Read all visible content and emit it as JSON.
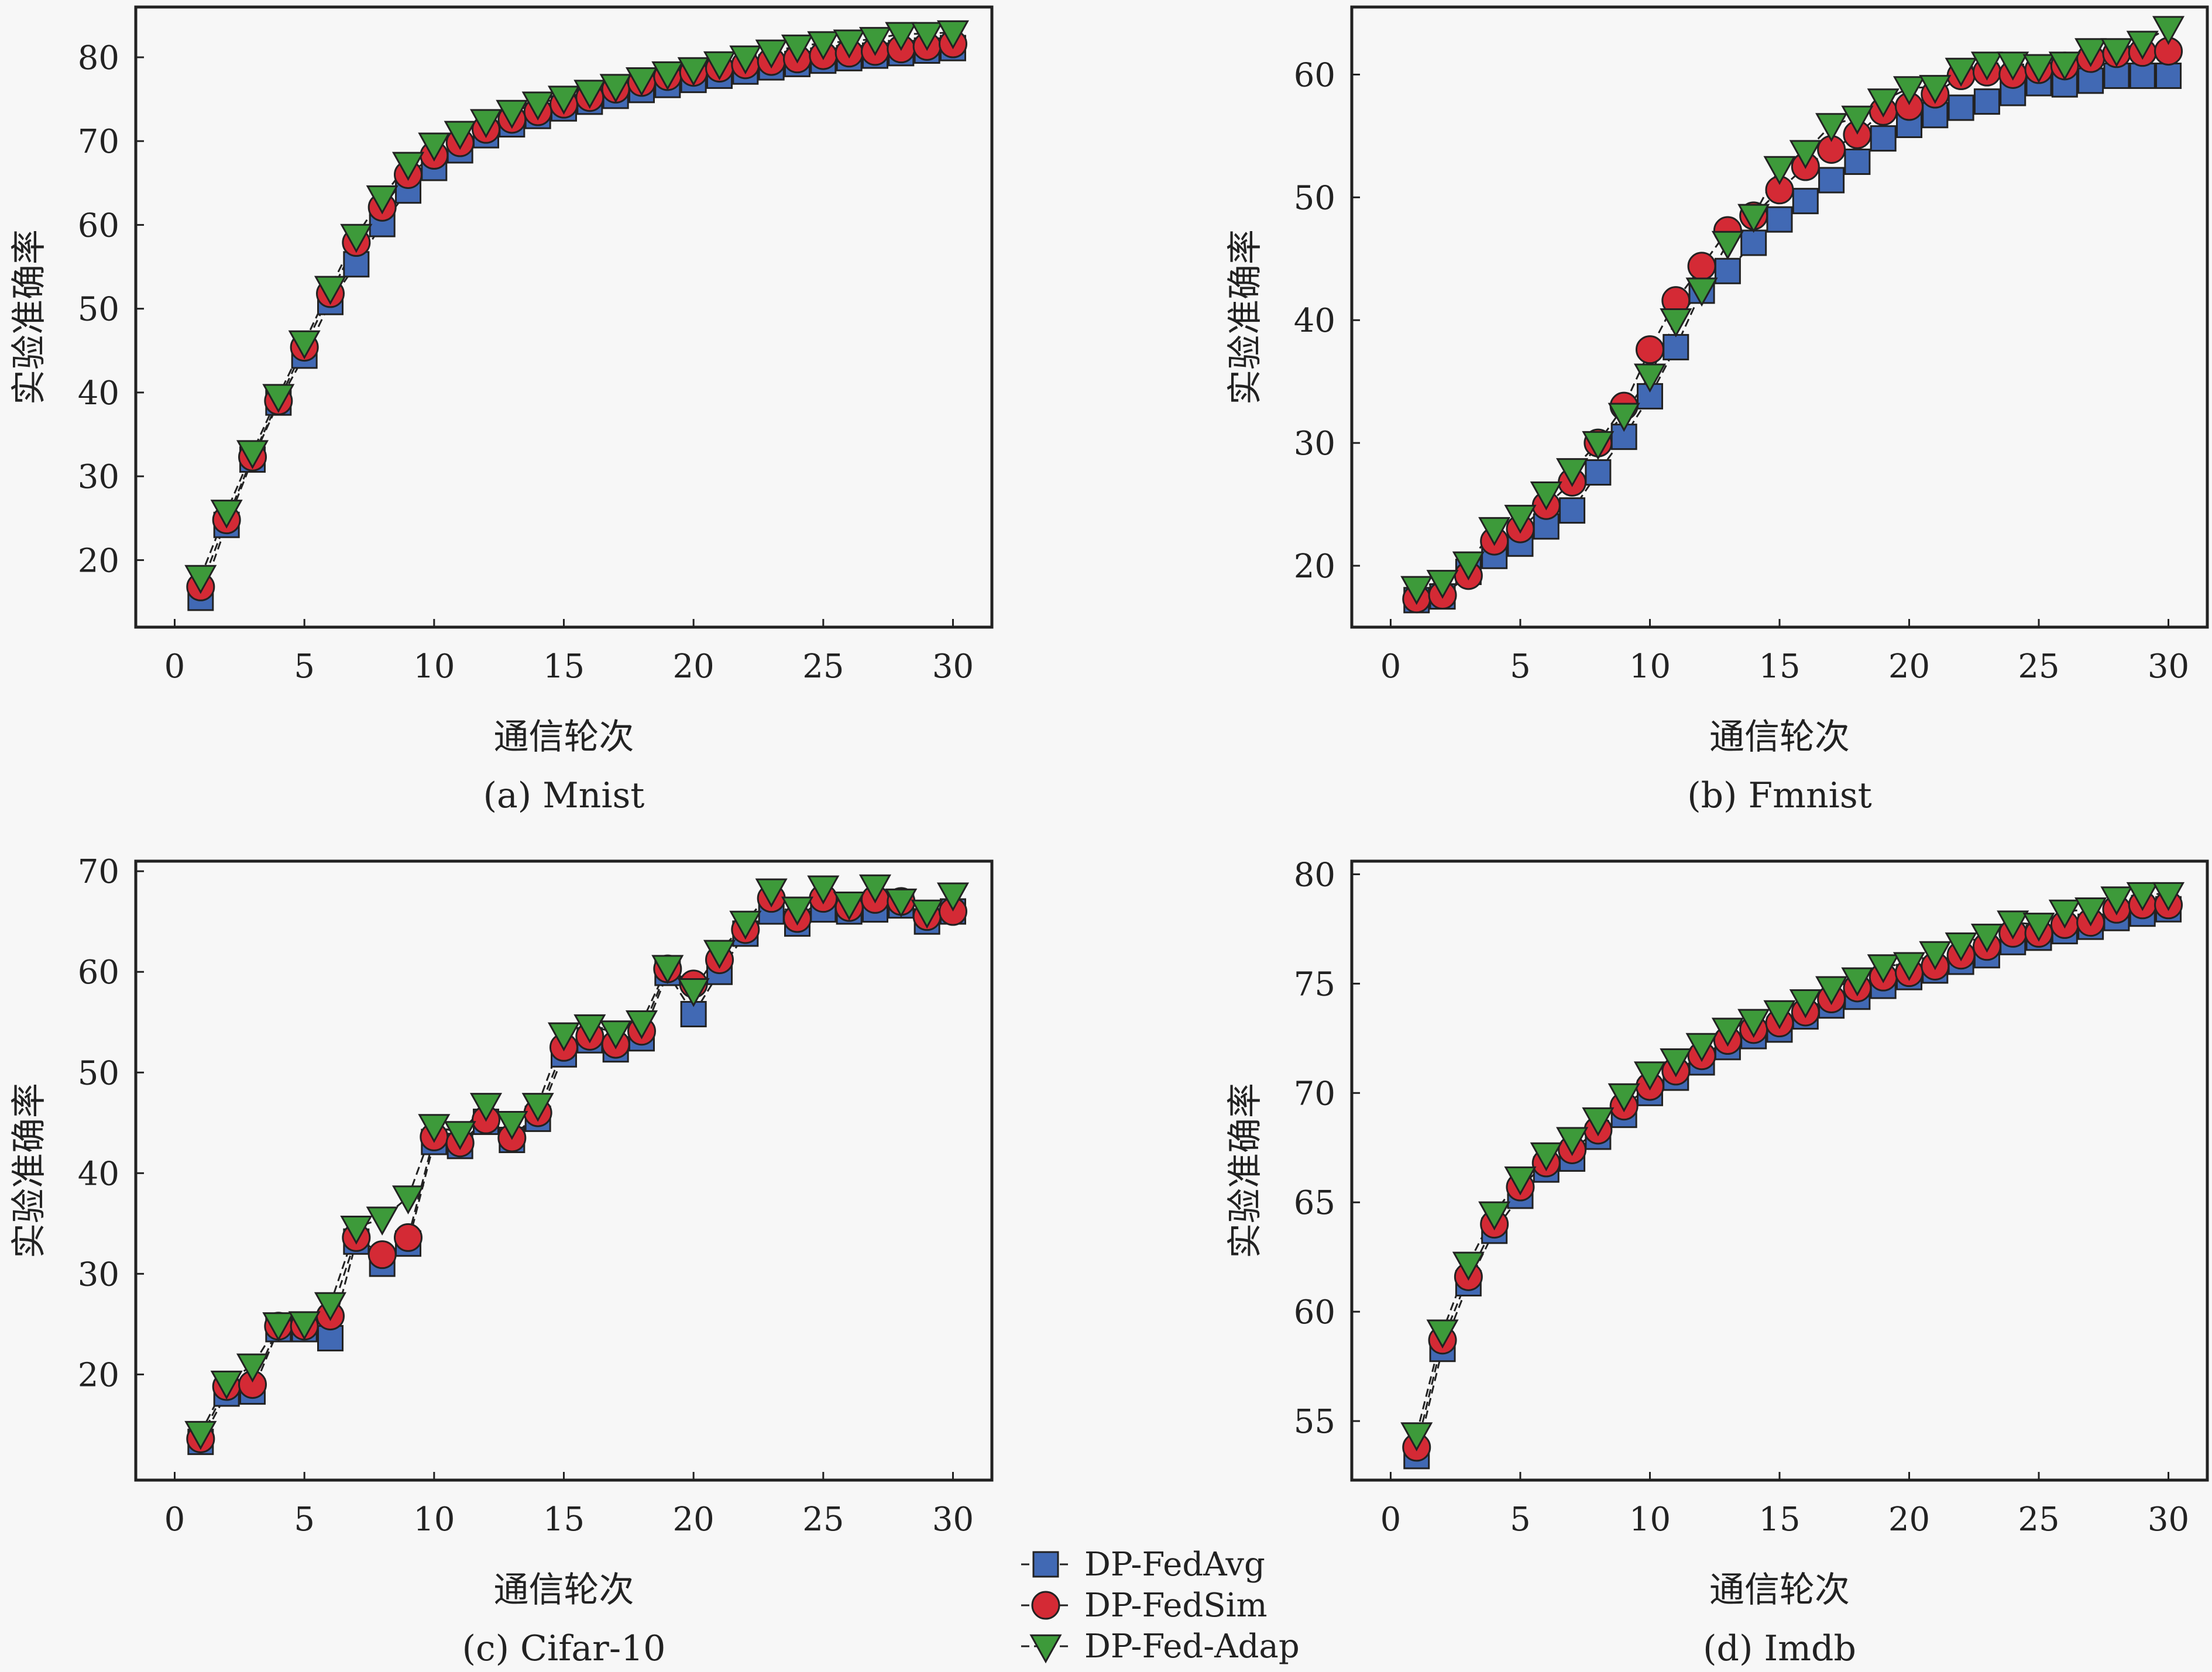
{
  "chart_data": [
    {
      "type": "line",
      "caption": "(a) Mnist",
      "xlabel": "通信轮次",
      "ylabel": "实验准确率",
      "xlim": [
        -1.5,
        31.5
      ],
      "ylim": [
        12,
        86
      ],
      "xticks": [
        0,
        5,
        10,
        15,
        20,
        25,
        30
      ],
      "yticks": [
        20,
        30,
        40,
        50,
        60,
        70,
        80
      ],
      "x": [
        1,
        2,
        3,
        4,
        5,
        6,
        7,
        8,
        9,
        10,
        11,
        12,
        13,
        14,
        15,
        16,
        17,
        18,
        19,
        20,
        21,
        22,
        23,
        24,
        25,
        26,
        27,
        28,
        29,
        30
      ],
      "series": [
        {
          "name": "DP-FedAvg",
          "values": [
            15.5,
            24.2,
            32.0,
            38.8,
            44.4,
            50.8,
            55.3,
            60.1,
            64.1,
            66.8,
            68.9,
            70.7,
            72.0,
            73.0,
            73.9,
            74.7,
            75.4,
            76.1,
            76.7,
            77.3,
            77.8,
            78.3,
            78.8,
            79.2,
            79.6,
            79.9,
            80.2,
            80.5,
            80.8,
            81.1
          ]
        },
        {
          "name": "DP-FedSim",
          "values": [
            16.8,
            24.8,
            32.3,
            39.0,
            45.4,
            51.8,
            57.9,
            62.1,
            66.0,
            68.3,
            69.8,
            71.4,
            72.6,
            73.5,
            74.4,
            75.2,
            76.2,
            77.0,
            77.7,
            78.2,
            78.7,
            79.1,
            79.5,
            79.8,
            80.2,
            80.5,
            80.7,
            81.0,
            81.3,
            81.6
          ]
        },
        {
          "name": "DP-Fed-Adap",
          "values": [
            18.0,
            25.8,
            32.9,
            39.6,
            46.0,
            52.5,
            58.7,
            63.3,
            67.3,
            69.6,
            71.0,
            72.4,
            73.5,
            74.5,
            75.2,
            75.9,
            76.6,
            77.4,
            78.1,
            78.6,
            79.3,
            80.0,
            80.7,
            81.3,
            81.7,
            81.9,
            82.2,
            82.8,
            82.8,
            83.0
          ]
        }
      ]
    },
    {
      "type": "line",
      "caption": "(b) Fmnist",
      "xlabel": "通信轮次",
      "ylabel": "实验准确率",
      "xlim": [
        -1.5,
        31.5
      ],
      "ylim": [
        15,
        65.5
      ],
      "xticks": [
        0,
        5,
        10,
        15,
        20,
        25,
        30
      ],
      "yticks": [
        20,
        30,
        40,
        50,
        60
      ],
      "x": [
        1,
        2,
        3,
        4,
        5,
        6,
        7,
        8,
        9,
        10,
        11,
        12,
        13,
        14,
        15,
        16,
        17,
        18,
        19,
        20,
        21,
        22,
        23,
        24,
        25,
        26,
        27,
        28,
        29,
        30
      ],
      "series": [
        {
          "name": "DP-FedAvg",
          "values": [
            17.2,
            17.5,
            19.5,
            20.8,
            21.8,
            23.2,
            24.5,
            27.6,
            30.5,
            33.8,
            37.8,
            42.4,
            44.0,
            46.3,
            48.2,
            49.7,
            51.4,
            52.9,
            54.8,
            55.9,
            56.7,
            57.3,
            57.8,
            58.5,
            59.3,
            59.2,
            59.5,
            59.9,
            59.9,
            59.9
          ]
        },
        {
          "name": "DP-FedSim",
          "values": [
            17.3,
            17.6,
            19.2,
            22.0,
            23.0,
            24.9,
            26.8,
            30.0,
            33.0,
            37.6,
            41.6,
            44.4,
            47.3,
            48.5,
            50.6,
            52.5,
            53.9,
            55.1,
            57.0,
            57.4,
            58.4,
            59.9,
            60.2,
            60.0,
            60.4,
            60.7,
            61.3,
            61.7,
            61.8,
            61.9
          ]
        },
        {
          "name": "DP-Fed-Adap",
          "values": [
            18.2,
            18.7,
            20.2,
            23.0,
            24.0,
            25.9,
            27.8,
            30.0,
            32.3,
            35.5,
            40.0,
            42.5,
            46.3,
            48.5,
            52.4,
            53.7,
            55.9,
            56.5,
            57.9,
            58.9,
            59.0,
            60.4,
            60.9,
            60.9,
            60.7,
            60.9,
            62.0,
            62.0,
            62.6,
            63.8
          ]
        }
      ]
    },
    {
      "type": "line",
      "caption": "(c) Cifar-10",
      "xlabel": "通信轮次",
      "ylabel": "实验准确率",
      "xlim": [
        -1.5,
        31.5
      ],
      "ylim": [
        9.5,
        71
      ],
      "xticks": [
        0,
        5,
        10,
        15,
        20,
        25,
        30
      ],
      "yticks": [
        20,
        30,
        40,
        50,
        60,
        70
      ],
      "x": [
        1,
        2,
        3,
        4,
        5,
        6,
        7,
        8,
        9,
        10,
        11,
        12,
        13,
        14,
        15,
        16,
        17,
        18,
        19,
        20,
        21,
        22,
        23,
        24,
        25,
        26,
        27,
        28,
        29,
        30
      ],
      "series": [
        {
          "name": "DP-FedAvg",
          "values": [
            13.3,
            18.1,
            18.3,
            24.5,
            24.5,
            23.6,
            33.2,
            31.0,
            33.0,
            43.1,
            42.7,
            45.1,
            43.3,
            45.4,
            51.8,
            53.2,
            52.3,
            53.4,
            59.9,
            55.8,
            60.0,
            63.8,
            66.0,
            64.8,
            66.2,
            66.0,
            66.2,
            66.6,
            65.0,
            66.0
          ]
        },
        {
          "name": "DP-FedSim",
          "values": [
            13.6,
            18.8,
            19.0,
            24.8,
            24.8,
            25.8,
            33.6,
            31.9,
            33.6,
            43.6,
            43.0,
            45.3,
            43.5,
            46.0,
            52.5,
            53.6,
            52.8,
            54.1,
            60.3,
            58.8,
            61.2,
            64.2,
            67.3,
            65.3,
            67.3,
            66.4,
            67.2,
            67.0,
            65.5,
            66.0
          ]
        },
        {
          "name": "DP-Fed-Adap",
          "values": [
            14.2,
            19.2,
            20.9,
            25.0,
            25.1,
            27.0,
            34.6,
            35.5,
            37.6,
            44.7,
            44.0,
            46.8,
            45.0,
            46.8,
            53.8,
            54.6,
            54.0,
            55.0,
            60.5,
            58.2,
            62.0,
            64.9,
            68.1,
            66.3,
            68.4,
            66.8,
            68.5,
            67.1,
            66.0,
            67.7
          ]
        }
      ]
    },
    {
      "type": "line",
      "caption": "(d) Imdb",
      "xlabel": "通信轮次",
      "ylabel": "实验准确率",
      "xlim": [
        -1.5,
        31.5
      ],
      "ylim": [
        52.3,
        80.6
      ],
      "xticks": [
        0,
        5,
        10,
        15,
        20,
        25,
        30
      ],
      "yticks": [
        55,
        60,
        65,
        70,
        75,
        80
      ],
      "x": [
        1,
        2,
        3,
        4,
        5,
        6,
        7,
        8,
        9,
        10,
        11,
        12,
        13,
        14,
        15,
        16,
        17,
        18,
        19,
        20,
        21,
        22,
        23,
        24,
        25,
        26,
        27,
        28,
        29,
        30
      ],
      "series": [
        {
          "name": "DP-FedAvg",
          "values": [
            53.4,
            58.3,
            61.3,
            63.7,
            65.3,
            66.5,
            67.0,
            68.0,
            69.0,
            70.0,
            70.7,
            71.4,
            72.1,
            72.6,
            72.9,
            73.5,
            74.0,
            74.4,
            74.9,
            75.3,
            75.6,
            76.0,
            76.3,
            76.9,
            77.1,
            77.4,
            77.6,
            78.0,
            78.2,
            78.4
          ]
        },
        {
          "name": "DP-FedSim",
          "values": [
            53.8,
            58.7,
            61.6,
            64.0,
            65.7,
            66.8,
            67.4,
            68.3,
            69.4,
            70.3,
            71.0,
            71.7,
            72.4,
            72.9,
            73.2,
            73.7,
            74.3,
            74.8,
            75.3,
            75.5,
            75.8,
            76.3,
            76.7,
            77.3,
            77.3,
            77.7,
            77.8,
            78.4,
            78.6,
            78.6
          ]
        },
        {
          "name": "DP-Fed-Adap",
          "values": [
            54.4,
            59.1,
            62.2,
            64.5,
            66.1,
            67.2,
            67.9,
            68.8,
            69.9,
            70.9,
            71.5,
            72.2,
            72.9,
            73.3,
            73.7,
            74.2,
            74.8,
            75.2,
            75.8,
            75.9,
            76.4,
            76.8,
            77.2,
            77.8,
            77.7,
            78.3,
            78.4,
            78.9,
            79.1,
            79.1
          ]
        }
      ]
    }
  ],
  "legend": {
    "entries": [
      "DP-FedAvg",
      "DP-FedSim",
      "DP-Fed-Adap"
    ]
  },
  "styles": {
    "DP-FedAvg": {
      "color": "#4169b4",
      "marker": "square"
    },
    "DP-FedSim": {
      "color": "#d42a35",
      "marker": "circle"
    },
    "DP-Fed-Adap": {
      "color": "#3d9a3a",
      "marker": "triangle-down"
    },
    "line_color": "#222222",
    "background": "#f7f7f7"
  }
}
